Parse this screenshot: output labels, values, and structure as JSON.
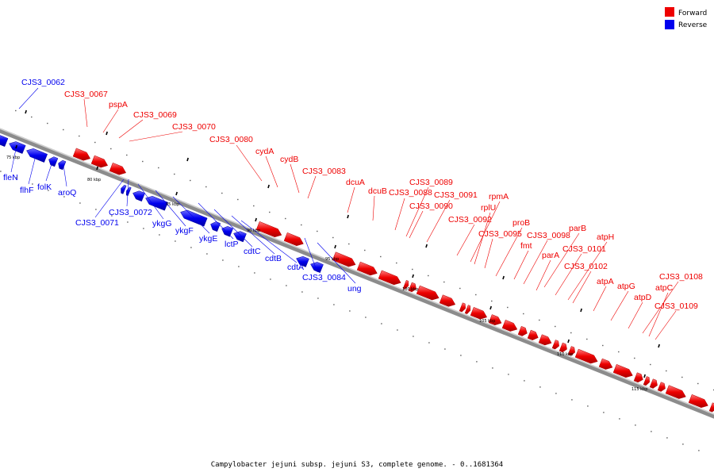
{
  "legend": [
    {
      "label": "Forward",
      "color": "#ee0000"
    },
    {
      "label": "Reverse",
      "color": "#0000ee"
    }
  ],
  "caption": "Campylobacter jejuni subsp. jejuni S3, complete genome. - 0..1681364",
  "colors": {
    "forward": "#ee0000",
    "reverse": "#0000ee",
    "backbone": "#888888"
  },
  "scale_labels": [
    "75 kbp",
    "80 kbp",
    "85 kbp",
    "90 kbp",
    "95 kbp",
    "100 kbp",
    "105 kbp",
    "110 kbp",
    "115 kbp"
  ],
  "forward_genes": [
    "CJS3_0067",
    "pspA",
    "CJS3_0069",
    "CJS3_0070",
    "CJS3_0080",
    "cydA",
    "cydB",
    "CJS3_0083",
    "dcuA",
    "dcuB",
    "CJS3_0088",
    "CJS3_0089",
    "CJS3_0090",
    "CJS3_0091",
    "rpmA",
    "rplU",
    "CJS3_0092",
    "CJS3_0095",
    "proB",
    "fmt",
    "CJS3_0098",
    "parB",
    "parA",
    "CJS3_0101",
    "atpH",
    "CJS3_0102",
    "atpA",
    "atpG",
    "atpD",
    "CJS3_0108",
    "atpC",
    "CJS3_0109"
  ],
  "reverse_genes": [
    "CJS3_0062",
    "fleN",
    "flhF",
    "folK",
    "aroQ",
    "CJS3_0071",
    "CJS3_0072",
    "ykgG",
    "ykgF",
    "ykgE",
    "lctP",
    "cdtC",
    "cdtB",
    "cdtA",
    "CJS3_0084",
    "ung"
  ]
}
